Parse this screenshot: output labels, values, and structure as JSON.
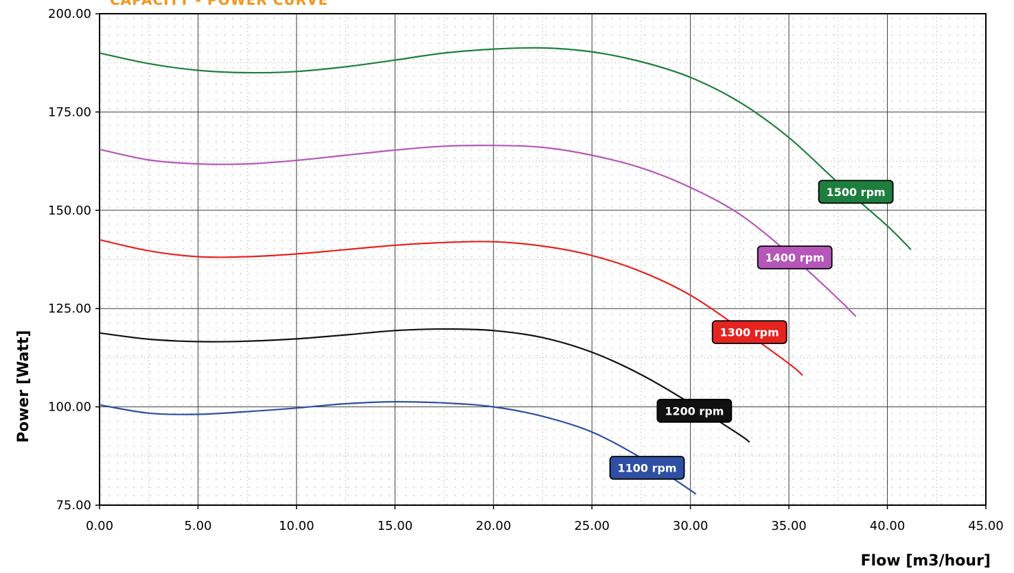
{
  "chart_data": {
    "type": "line",
    "title": "CAPACITY - POWER CURVE",
    "xlabel": "Flow [m3/hour]",
    "ylabel": "Power [Watt]",
    "xlim": [
      0,
      45
    ],
    "ylim": [
      75,
      200
    ],
    "x_ticks": [
      "0.00",
      "5.00",
      "10.00",
      "15.00",
      "20.00",
      "25.00",
      "30.00",
      "35.00",
      "40.00",
      "45.00"
    ],
    "y_ticks": [
      "75.00",
      "100.00",
      "125.00",
      "150.00",
      "175.00",
      "200.00"
    ],
    "grid": true,
    "series": [
      {
        "name": "1500 rpm",
        "color": "#1e7e3e",
        "x": [
          0,
          2.5,
          5,
          7.5,
          10,
          12.5,
          15,
          17.5,
          20,
          22.5,
          25,
          27.5,
          30,
          32.5,
          35,
          37.5,
          40,
          41.2
        ],
        "y": [
          190.0,
          187.3,
          185.6,
          185.0,
          185.3,
          186.5,
          188.2,
          190.0,
          191.0,
          191.3,
          190.3,
          187.8,
          183.8,
          177.5,
          168.5,
          157.0,
          146.0,
          140.0
        ]
      },
      {
        "name": "1400 rpm",
        "color": "#b556b8",
        "x": [
          0,
          2.5,
          5,
          7.5,
          10,
          12.5,
          15,
          17.5,
          20,
          22.5,
          25,
          27.5,
          30,
          32.5,
          35,
          37.5,
          38.4
        ],
        "y": [
          165.5,
          162.8,
          161.8,
          161.8,
          162.7,
          164.0,
          165.3,
          166.3,
          166.5,
          166.0,
          164.0,
          160.8,
          155.8,
          149.0,
          139.0,
          127.5,
          123.0
        ]
      },
      {
        "name": "1300 rpm",
        "color": "#e52420",
        "x": [
          0,
          2.5,
          5,
          7.5,
          10,
          12.5,
          15,
          17.5,
          20,
          22.5,
          25,
          27.5,
          30,
          32.5,
          35,
          35.7
        ],
        "y": [
          142.5,
          139.7,
          138.2,
          138.2,
          138.9,
          140.0,
          141.1,
          141.8,
          142.0,
          140.9,
          138.5,
          134.4,
          128.4,
          120.0,
          111.0,
          108.0
        ]
      },
      {
        "name": "1200 rpm",
        "color": "#111111",
        "x": [
          0,
          2.5,
          5,
          7.5,
          10,
          12.5,
          15,
          17.5,
          20,
          22.5,
          25,
          27.5,
          30,
          32.5,
          33.0
        ],
        "y": [
          118.8,
          117.2,
          116.6,
          116.7,
          117.3,
          118.3,
          119.4,
          119.8,
          119.4,
          117.6,
          113.9,
          108.2,
          100.9,
          92.9,
          91.0
        ]
      },
      {
        "name": "1100 rpm",
        "color": "#2e4fa3",
        "x": [
          0,
          2.5,
          5,
          7.5,
          10,
          12.5,
          15,
          17.5,
          20,
          22.5,
          25,
          27.5,
          30,
          30.2
        ],
        "y": [
          100.5,
          98.4,
          98.1,
          98.8,
          99.7,
          100.8,
          101.3,
          101.0,
          100.0,
          97.6,
          93.6,
          87.0,
          78.8,
          78.0
        ]
      }
    ],
    "annotations": [
      {
        "text": "1500 rpm",
        "series": "1500 rpm",
        "x": 38.4,
        "y": 154.7
      },
      {
        "text": "1400 rpm",
        "series": "1400 rpm",
        "x": 35.3,
        "y": 138.0
      },
      {
        "text": "1300 rpm",
        "series": "1300 rpm",
        "x": 33.0,
        "y": 119.0
      },
      {
        "text": "1200 rpm",
        "series": "1200 rpm",
        "x": 30.2,
        "y": 99.0
      },
      {
        "text": "1100 rpm",
        "series": "1100 rpm",
        "x": 27.8,
        "y": 84.5
      }
    ]
  }
}
